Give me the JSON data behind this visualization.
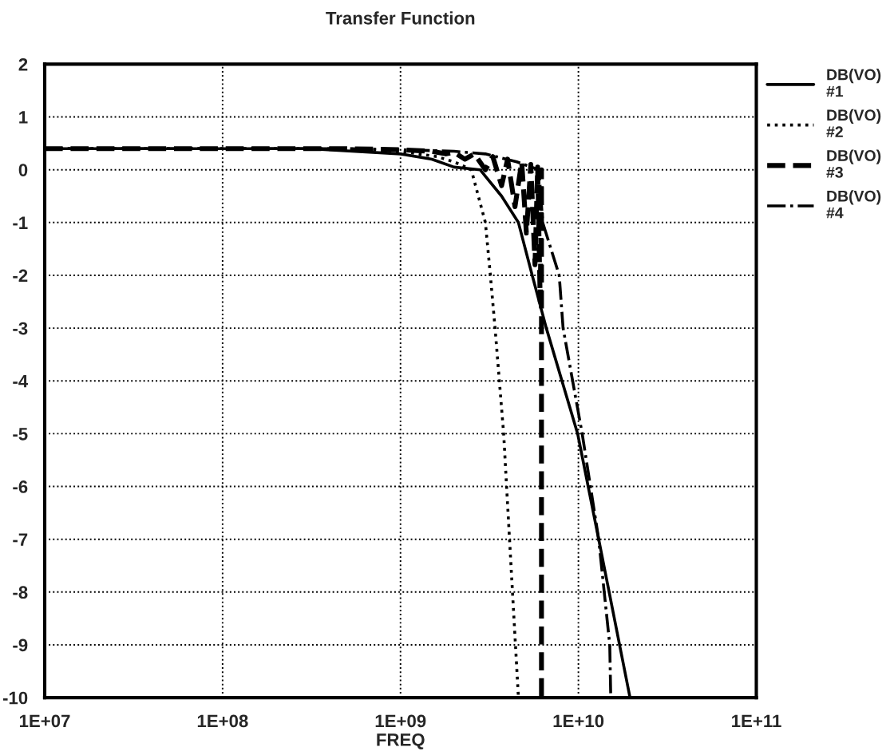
{
  "chart_data": {
    "type": "line",
    "title": "Transfer Function",
    "xlabel": "FREQ",
    "log": "x",
    "grid": true,
    "legend": "top right",
    "xlim": [
      10000000.0,
      100000000000.0
    ],
    "xticks": [
      {
        "value": 10000000.0,
        "label": "1E+07"
      },
      {
        "value": 100000000.0,
        "label": "1E+08"
      },
      {
        "value": 1000000000.0,
        "label": "1E+09"
      },
      {
        "value": 10000000000.0,
        "label": "1E+10"
      },
      {
        "value": 100000000000.0,
        "label": "1E+11"
      }
    ],
    "ylim": [
      -10,
      2
    ],
    "yticks": [
      -10,
      -9,
      -8,
      -7,
      -6,
      -5,
      -4,
      -3,
      -2,
      -1,
      0,
      1,
      2
    ],
    "series": [
      {
        "name": "DB(VO)\n#1",
        "color": "#000000",
        "line_style": "solid",
        "x": [
          10000000.0,
          100000000.0,
          300000000.0,
          1000000000.0,
          1500000000.0,
          2000000000.0,
          2800000000.0,
          3700000000.0,
          4600000000.0,
          5500000000.0,
          6600000000.0,
          9900000000.0,
          13000000000.0,
          19500000000.0
        ],
        "values": [
          0.4,
          0.4,
          0.4,
          0.3,
          0.2,
          0.05,
          0,
          -0.5,
          -1,
          -2,
          -3,
          -5,
          -7,
          -10
        ]
      },
      {
        "name": "DB(VO)\n#2",
        "color": "#000000",
        "line_style": "dotted",
        "x": [
          10000000.0,
          100000000.0,
          500000000.0,
          1000000000.0,
          1600000000.0,
          2000000000.0,
          2500000000.0,
          3000000000.0,
          3200000000.0,
          3400000000.0,
          3800000000.0,
          4100000000.0,
          4600000000.0
        ],
        "values": [
          0.4,
          0.4,
          0.4,
          0.35,
          0.25,
          0.15,
          0,
          -1,
          -2,
          -3,
          -5,
          -7,
          -10
        ]
      },
      {
        "name": "DB(VO)\n#3",
        "color": "#000000",
        "line_style": "dashed",
        "x": [
          10000000.0,
          100000000.0,
          500000000.0,
          1000000000.0,
          1500000000.0,
          1800000000.0,
          2000000000.0,
          2300000000.0,
          2600000000.0,
          3000000000.0,
          3300000000.0,
          3700000000.0,
          4000000000.0,
          4400000000.0,
          4800000000.0,
          5100000000.0,
          5400000000.0,
          5700000000.0,
          5900000000.0,
          6100000000.0,
          6200000000.0,
          6200000000.0
        ],
        "values": [
          0.4,
          0.4,
          0.4,
          0.38,
          0.35,
          0.3,
          0.33,
          0.2,
          0.3,
          0,
          0.25,
          -0.3,
          0.2,
          -0.7,
          0.15,
          -1.2,
          0.1,
          -1.8,
          0.05,
          -2.5,
          0,
          -10
        ]
      },
      {
        "name": "DB(VO)\n#4",
        "color": "#000000",
        "line_style": "dashdot",
        "x": [
          10000000.0,
          100000000.0,
          500000000.0,
          1000000000.0,
          2000000000.0,
          3000000000.0,
          4500000000.0,
          6000000000.0,
          6300000000.0,
          7800000000.0,
          8200000000.0,
          10500000000.0,
          13000000000.0,
          15000000000.0,
          15200000000.0
        ],
        "values": [
          0.4,
          0.4,
          0.4,
          0.38,
          0.35,
          0.3,
          0.15,
          0,
          -1,
          -2,
          -3,
          -5,
          -7,
          -9,
          -10
        ]
      }
    ]
  }
}
